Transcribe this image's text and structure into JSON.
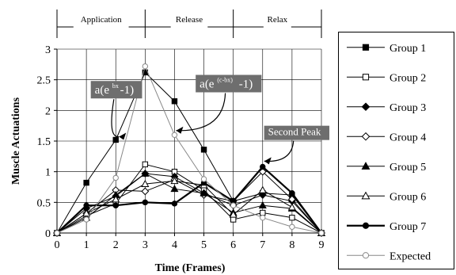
{
  "chart_data": {
    "type": "line",
    "xlabel": "Time (Frames)",
    "ylabel": "Muscle Actuations",
    "x": [
      0,
      1,
      2,
      3,
      4,
      5,
      6,
      7,
      8,
      9
    ],
    "xlim": [
      0,
      9
    ],
    "ylim": [
      0,
      3
    ],
    "yticks": [
      "0",
      "0.5",
      "1",
      "1.5",
      "2",
      "2.5",
      "3"
    ],
    "xticks": [
      "0",
      "1",
      "2",
      "3",
      "4",
      "5",
      "6",
      "7",
      "8",
      "9"
    ],
    "grid": true,
    "phases": [
      {
        "label": "Application",
        "from": 0,
        "to": 3
      },
      {
        "label": "Release",
        "from": 3,
        "to": 6
      },
      {
        "label": "Relax",
        "from": 6,
        "to": 9
      }
    ],
    "annotations": [
      {
        "text": "a(e",
        "sup": "bx",
        "tail": "-1)",
        "x": 1.15,
        "y": 2.48,
        "points_to": {
          "x": 2,
          "y": 1.52
        }
      },
      {
        "text": "a(e",
        "sup": "(c-bx)",
        "tail": "-1)",
        "x": 4.72,
        "y": 2.58,
        "points_to": {
          "x": 4,
          "y": 1.62
        }
      },
      {
        "text": "Second Peak",
        "sup": "",
        "tail": "",
        "x": 7.05,
        "y": 1.75,
        "points_to": {
          "x": 7,
          "y": 1.12
        }
      }
    ],
    "legend_position": "right",
    "series": [
      {
        "name": "Group 1",
        "marker": "square-filled",
        "stroke": 1,
        "values": [
          0,
          0.82,
          1.52,
          2.62,
          2.15,
          1.36,
          0.52,
          0.65,
          0.62,
          0
        ]
      },
      {
        "name": "Group 2",
        "marker": "square-open",
        "stroke": 1,
        "values": [
          0,
          0.28,
          0.48,
          1.12,
          1.0,
          0.7,
          0.22,
          0.33,
          0.25,
          0
        ]
      },
      {
        "name": "Group 3",
        "marker": "diamond-filled",
        "stroke": 1,
        "values": [
          0,
          0.4,
          0.6,
          0.97,
          0.92,
          0.65,
          0.45,
          0.62,
          0.52,
          0
        ]
      },
      {
        "name": "Group 4",
        "marker": "diamond-open",
        "stroke": 1,
        "values": [
          0,
          0.32,
          0.7,
          0.68,
          0.87,
          0.62,
          0.52,
          1.0,
          0.55,
          0
        ]
      },
      {
        "name": "Group 5",
        "marker": "triangle-filled",
        "stroke": 1,
        "values": [
          0,
          0.25,
          0.62,
          0.97,
          0.72,
          0.65,
          0.33,
          0.45,
          0.4,
          0
        ]
      },
      {
        "name": "Group 6",
        "marker": "triangle-open",
        "stroke": 1,
        "values": [
          0,
          0.32,
          0.55,
          0.8,
          0.85,
          0.78,
          0.3,
          0.7,
          0.42,
          0
        ]
      },
      {
        "name": "Group 7",
        "marker": "circle-filled",
        "stroke": 2.2,
        "values": [
          0,
          0.45,
          0.45,
          0.5,
          0.48,
          0.82,
          0.52,
          1.08,
          0.65,
          0
        ]
      },
      {
        "name": "Expected",
        "marker": "circle-open",
        "stroke": 1,
        "color": "#888888",
        "values": [
          0,
          0.22,
          0.9,
          2.72,
          1.6,
          0.88,
          0.45,
          0.25,
          0.1,
          0
        ]
      }
    ],
    "colors": {
      "line": "#000000",
      "expected_line": "#888888",
      "annotation_box": "#6e6e6e",
      "annotation_text": "#ffffff",
      "grid": "#000000"
    }
  }
}
